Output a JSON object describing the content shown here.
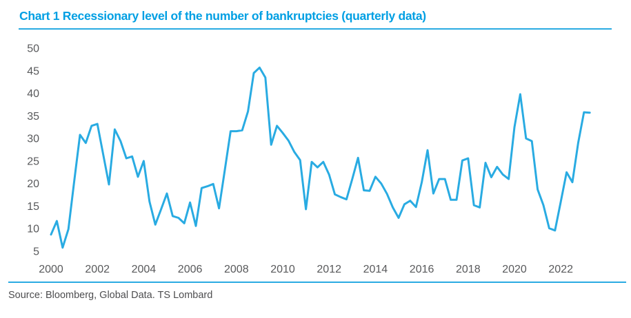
{
  "header": {
    "title": "Chart 1 Recessionary level of the number of bankruptcies (quarterly data)"
  },
  "footer": {
    "source": "Source: Bloomberg, Global Data. TS Lombard"
  },
  "colors": {
    "title_blue": "#009FE3",
    "rule_blue": "#29ABE2",
    "line_blue": "#29ABE2",
    "axis_gray": "#58595B",
    "source_gray": "#4D4D4F",
    "background": "#ffffff"
  },
  "chart_data": {
    "type": "line",
    "title": "Chart 1 Recessionary level of the number of bankruptcies (quarterly data)",
    "xlabel": "",
    "ylabel": "",
    "ylim": [
      5,
      50
    ],
    "y_ticks": [
      5,
      10,
      15,
      20,
      25,
      30,
      35,
      40,
      45,
      50
    ],
    "x_tick_labels": [
      "2000",
      "2002",
      "2004",
      "2006",
      "2008",
      "2010",
      "2012",
      "2014",
      "2016",
      "2018",
      "2020",
      "2022"
    ],
    "grid": false,
    "legend_position": "none",
    "series": [
      {
        "name": "Number of bankruptcies (quarterly)",
        "quarters": [
          "2000Q1",
          "2000Q2",
          "2000Q3",
          "2000Q4",
          "2001Q1",
          "2001Q2",
          "2001Q3",
          "2001Q4",
          "2002Q1",
          "2002Q2",
          "2002Q3",
          "2002Q4",
          "2003Q1",
          "2003Q2",
          "2003Q3",
          "2003Q4",
          "2004Q1",
          "2004Q2",
          "2004Q3",
          "2004Q4",
          "2005Q1",
          "2005Q2",
          "2005Q3",
          "2005Q4",
          "2006Q1",
          "2006Q2",
          "2006Q3",
          "2006Q4",
          "2007Q1",
          "2007Q2",
          "2007Q3",
          "2007Q4",
          "2008Q1",
          "2008Q2",
          "2008Q3",
          "2008Q4",
          "2009Q1",
          "2009Q2",
          "2009Q3",
          "2009Q4",
          "2010Q1",
          "2010Q2",
          "2010Q3",
          "2010Q4",
          "2011Q1",
          "2011Q2",
          "2011Q3",
          "2011Q4",
          "2012Q1",
          "2012Q2",
          "2012Q3",
          "2012Q4",
          "2013Q1",
          "2013Q2",
          "2013Q3",
          "2013Q4",
          "2014Q1",
          "2014Q2",
          "2014Q3",
          "2014Q4",
          "2015Q1",
          "2015Q2",
          "2015Q3",
          "2015Q4",
          "2016Q1",
          "2016Q2",
          "2016Q3",
          "2016Q4",
          "2017Q1",
          "2017Q2",
          "2017Q3",
          "2017Q4",
          "2018Q1",
          "2018Q2",
          "2018Q3",
          "2018Q4",
          "2019Q1",
          "2019Q2",
          "2019Q3",
          "2019Q4",
          "2020Q1",
          "2020Q2",
          "2020Q3",
          "2020Q4",
          "2021Q1",
          "2021Q2",
          "2021Q3",
          "2021Q4",
          "2022Q1",
          "2022Q2",
          "2022Q3",
          "2022Q4",
          "2023Q1",
          "2023Q2"
        ],
        "values": [
          8.7,
          11.7,
          5.8,
          9.9,
          20.5,
          30.8,
          29.0,
          32.8,
          33.2,
          26.5,
          19.8,
          32.0,
          29.4,
          25.6,
          26.0,
          21.5,
          25.0,
          16.0,
          10.9,
          14.3,
          17.8,
          12.8,
          12.4,
          11.2,
          15.8,
          10.6,
          19.0,
          19.4,
          19.9,
          14.5,
          23.0,
          31.6,
          31.6,
          31.8,
          36.0,
          44.5,
          45.7,
          43.5,
          28.6,
          32.8,
          31.2,
          29.5,
          27.0,
          25.2,
          14.3,
          24.8,
          23.6,
          24.8,
          22.0,
          17.6,
          17.0,
          16.5,
          21.0,
          25.7,
          18.5,
          18.4,
          21.5,
          20.0,
          17.7,
          14.7,
          12.4,
          15.4,
          16.2,
          14.8,
          20.3,
          27.4,
          17.8,
          21.0,
          21.0,
          16.4,
          16.4,
          25.1,
          25.6,
          15.2,
          14.7,
          24.6,
          21.4,
          23.7,
          22.0,
          21.0,
          32.5,
          39.8,
          30.0,
          29.4,
          18.7,
          15.2,
          10.1,
          9.6,
          16.0,
          22.5,
          20.3,
          29.0,
          35.8,
          35.7
        ]
      }
    ]
  }
}
